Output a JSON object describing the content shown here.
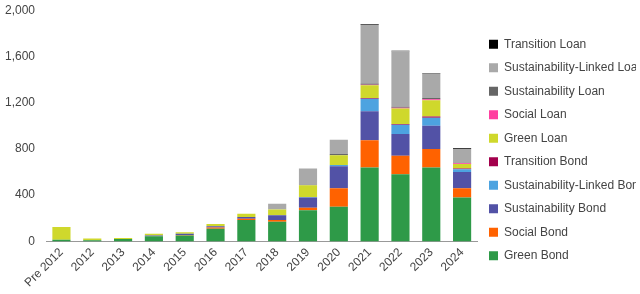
{
  "chart_data": {
    "type": "bar",
    "stacked": true,
    "grid": false,
    "legend": "right",
    "categories": [
      "Pre 2012",
      "2012",
      "2013",
      "2014",
      "2015",
      "2016",
      "2017",
      "2018",
      "2019",
      "2020",
      "2021",
      "2022",
      "2023",
      "2024"
    ],
    "ylim": [
      0,
      2000
    ],
    "yticks": [
      0,
      400,
      800,
      {
        "value": 1200,
        "label": "1,200"
      },
      {
        "value": 1600,
        "label": "1,600"
      },
      {
        "value": 2000,
        "label": "2,000"
      }
    ],
    "series": [
      {
        "name": "Green Bond",
        "color": "#2e9a48",
        "values": [
          15,
          10,
          20,
          45,
          50,
          110,
          185,
          170,
          270,
          300,
          640,
          580,
          640,
          380
        ]
      },
      {
        "name": "Social Bond",
        "color": "#ff6200",
        "values": [
          0,
          0,
          0,
          0,
          5,
          10,
          10,
          15,
          20,
          160,
          235,
          160,
          160,
          80
        ]
      },
      {
        "name": "Sustainability Bond",
        "color": "#5252a6",
        "values": [
          0,
          0,
          0,
          5,
          10,
          10,
          15,
          40,
          90,
          190,
          250,
          190,
          200,
          140
        ]
      },
      {
        "name": "Sustainability-Linked Bond",
        "color": "#4da3e0",
        "values": [
          0,
          0,
          0,
          0,
          0,
          0,
          0,
          0,
          5,
          10,
          110,
          80,
          70,
          25
        ]
      },
      {
        "name": "Transition Bond",
        "color": "#a3004c",
        "values": [
          0,
          0,
          0,
          0,
          0,
          0,
          0,
          0,
          0,
          0,
          5,
          5,
          10,
          5
        ]
      },
      {
        "name": "Green Loan",
        "color": "#cfd82c",
        "values": [
          110,
          15,
          10,
          15,
          15,
          20,
          30,
          50,
          100,
          85,
          110,
          135,
          140,
          40
        ]
      },
      {
        "name": "Social Loan",
        "color": "#ff3fa0",
        "values": [
          0,
          0,
          0,
          0,
          0,
          0,
          0,
          0,
          0,
          0,
          5,
          5,
          10,
          5
        ]
      },
      {
        "name": "Sustainability Loan",
        "color": "#666666",
        "values": [
          0,
          0,
          0,
          0,
          0,
          0,
          0,
          0,
          5,
          10,
          10,
          10,
          10,
          5
        ]
      },
      {
        "name": "Sustainability-Linked Loan",
        "color": "#a9a9a9",
        "values": [
          0,
          0,
          0,
          0,
          0,
          0,
          0,
          50,
          140,
          125,
          510,
          480,
          210,
          120
        ]
      },
      {
        "name": "Transition Loan",
        "color": "#000000",
        "values": [
          0,
          0,
          0,
          0,
          0,
          0,
          0,
          0,
          0,
          0,
          5,
          5,
          5,
          5
        ]
      }
    ]
  }
}
